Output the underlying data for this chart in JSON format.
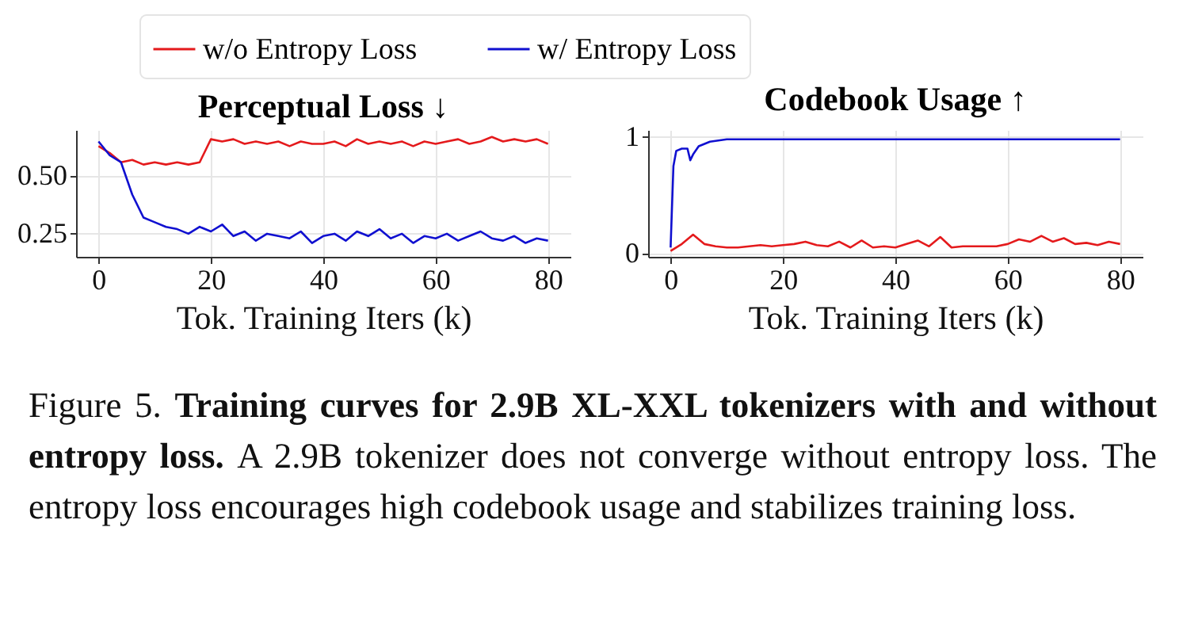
{
  "chart_data": [
    {
      "type": "line",
      "title": "Perceptual Loss ↓",
      "xlabel": "Tok. Training Iters (k)",
      "x": [
        0,
        2,
        4,
        6,
        8,
        10,
        12,
        14,
        16,
        18,
        20,
        22,
        24,
        26,
        28,
        30,
        32,
        34,
        36,
        38,
        40,
        42,
        44,
        46,
        48,
        50,
        52,
        54,
        56,
        58,
        60,
        62,
        64,
        66,
        68,
        70,
        72,
        74,
        76,
        78,
        80
      ],
      "series": [
        {
          "name": "w/o Entropy Loss",
          "color": "#e41a1c",
          "values": [
            0.63,
            0.6,
            0.56,
            0.57,
            0.55,
            0.56,
            0.55,
            0.56,
            0.55,
            0.56,
            0.66,
            0.65,
            0.66,
            0.64,
            0.65,
            0.64,
            0.65,
            0.63,
            0.65,
            0.64,
            0.64,
            0.65,
            0.63,
            0.66,
            0.64,
            0.65,
            0.64,
            0.65,
            0.63,
            0.65,
            0.64,
            0.65,
            0.66,
            0.64,
            0.65,
            0.67,
            0.65,
            0.66,
            0.65,
            0.66,
            0.64
          ]
        },
        {
          "name": "w/ Entropy Loss",
          "color": "#1010d0",
          "values": [
            0.65,
            0.59,
            0.56,
            0.42,
            0.32,
            0.3,
            0.28,
            0.27,
            0.25,
            0.28,
            0.26,
            0.29,
            0.24,
            0.26,
            0.22,
            0.25,
            0.24,
            0.23,
            0.26,
            0.21,
            0.24,
            0.25,
            0.22,
            0.26,
            0.24,
            0.27,
            0.23,
            0.25,
            0.21,
            0.24,
            0.23,
            0.25,
            0.22,
            0.24,
            0.26,
            0.23,
            0.22,
            0.24,
            0.21,
            0.23,
            0.22
          ]
        }
      ],
      "xlim": [
        -4,
        84
      ],
      "xticks": [
        0,
        20,
        40,
        60,
        80
      ],
      "ylim": [
        0.15,
        0.7
      ],
      "yticks": [
        0.25,
        {
          "value": 0.5,
          "label": "0.50"
        }
      ],
      "grid": true,
      "legend": "top",
      "annotations": [
        "Figure 5.",
        "Training curves for 2.9B XL-XXL tokenizers with and without entropy loss.",
        "A 2.9B tokenizer does not converge without entropy loss. The entropy loss encourages high codebook usage and stabilizes training loss."
      ]
    },
    {
      "type": "line",
      "title": "Codebook Usage ↑",
      "xlabel": "Tok. Training Iters (k)",
      "series": [
        {
          "name": "w/o Entropy Loss",
          "color": "#e41a1c",
          "x": [
            0,
            2,
            4,
            6,
            8,
            10,
            12,
            14,
            16,
            18,
            20,
            22,
            24,
            26,
            28,
            30,
            32,
            34,
            36,
            38,
            40,
            42,
            44,
            46,
            48,
            50,
            52,
            54,
            56,
            58,
            60,
            62,
            64,
            66,
            68,
            70,
            72,
            74,
            76,
            78,
            80
          ],
          "values": [
            0.02,
            0.08,
            0.16,
            0.08,
            0.06,
            0.05,
            0.05,
            0.06,
            0.07,
            0.06,
            0.07,
            0.08,
            0.1,
            0.07,
            0.06,
            0.1,
            0.05,
            0.11,
            0.05,
            0.06,
            0.05,
            0.08,
            0.11,
            0.06,
            0.14,
            0.05,
            0.06,
            0.06,
            0.06,
            0.06,
            0.08,
            0.12,
            0.1,
            0.15,
            0.1,
            0.13,
            0.08,
            0.09,
            0.07,
            0.1,
            0.08
          ]
        },
        {
          "name": "w/ Entropy Loss",
          "color": "#1010d0",
          "x": [
            0,
            0.5,
            1,
            2,
            3,
            3.5,
            4,
            5,
            7,
            10,
            20,
            40,
            60,
            80
          ],
          "values": [
            0.05,
            0.75,
            0.88,
            0.9,
            0.9,
            0.8,
            0.85,
            0.92,
            0.96,
            0.98,
            0.98,
            0.98,
            0.98,
            0.98
          ]
        }
      ],
      "xlim": [
        -4,
        84
      ],
      "xticks": [
        0,
        20,
        40,
        60,
        80
      ],
      "ylim": [
        -0.03,
        1.06
      ],
      "yticks": [
        0,
        1
      ],
      "grid": true
    }
  ]
}
